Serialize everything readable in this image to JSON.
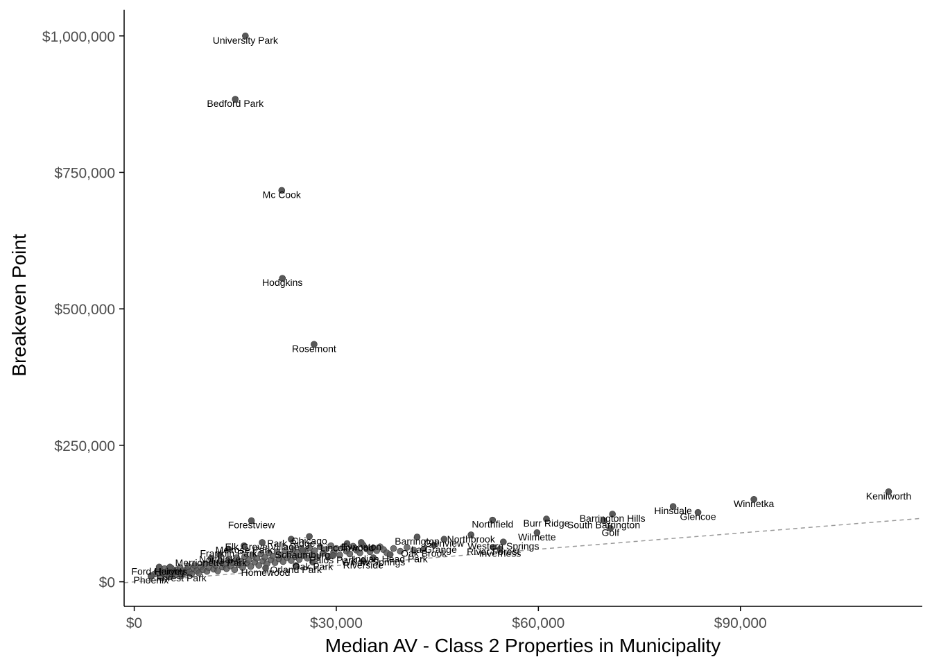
{
  "chart_data": {
    "type": "scatter",
    "title": "",
    "xlabel": "Median AV - Class 2 Properties in Municipality",
    "ylabel": "Breakeven Point",
    "xlim": [
      -1500,
      117000
    ],
    "ylim": [
      -45000,
      1048000
    ],
    "x_ticks": [
      0,
      30000,
      60000,
      90000
    ],
    "x_tick_labels": [
      "$0",
      "$30,000",
      "$60,000",
      "$90,000"
    ],
    "y_ticks": [
      0,
      250000,
      500000,
      750000,
      1000000
    ],
    "y_tick_labels": [
      "$0",
      "$250,000",
      "$500,000",
      "$750,000",
      "$1,000,000"
    ],
    "grid": false,
    "point_color": "#595959",
    "reference_line": {
      "style": "dashed",
      "color": "#999999",
      "x": [
        -1500,
        117000
      ],
      "y": [
        -1700,
        116300
      ]
    },
    "points": [
      {
        "x": 16500,
        "y": 1000000,
        "label": "University Park"
      },
      {
        "x": 15000,
        "y": 884000,
        "label": "Bedford Park"
      },
      {
        "x": 21900,
        "y": 717000,
        "label": "Mc Cook"
      },
      {
        "x": 22000,
        "y": 556000,
        "label": "Hodgkins"
      },
      {
        "x": 26700,
        "y": 435000,
        "label": "Rosemont"
      },
      {
        "x": 112000,
        "y": 165000,
        "label": "Kenilworth"
      },
      {
        "x": 92000,
        "y": 151000,
        "label": "Winnetka"
      },
      {
        "x": 80000,
        "y": 138000,
        "label": "Hinsdale"
      },
      {
        "x": 83700,
        "y": 127000,
        "label": "Glencoe"
      },
      {
        "x": 71000,
        "y": 124000,
        "label": "Barrington Hills"
      },
      {
        "x": 69700,
        "y": 112000,
        "label": "South Barrington"
      },
      {
        "x": 70700,
        "y": 98000,
        "label": "Golf"
      },
      {
        "x": 61200,
        "y": 115000,
        "label": "Burr Ridge"
      },
      {
        "x": 53200,
        "y": 113000,
        "label": "Northfield"
      },
      {
        "x": 59800,
        "y": 90000,
        "label": "Wilmette"
      },
      {
        "x": 50000,
        "y": 86000,
        "label": "Northbrook"
      },
      {
        "x": 46000,
        "y": 78000,
        "label": "Glenview"
      },
      {
        "x": 54800,
        "y": 73000,
        "label": "Western Springs"
      },
      {
        "x": 42000,
        "y": 82000,
        "label": "Barrington"
      },
      {
        "x": 44500,
        "y": 67000,
        "label": "La Grange"
      },
      {
        "x": 43000,
        "y": 60000,
        "label": "Oak Brook"
      },
      {
        "x": 53300,
        "y": 63000,
        "label": "River Forest"
      },
      {
        "x": 54300,
        "y": 60000,
        "label": "Inverness"
      },
      {
        "x": 17400,
        "y": 112000,
        "label": "Forestview"
      },
      {
        "x": 26000,
        "y": 83000,
        "label": "Chicago"
      },
      {
        "x": 23300,
        "y": 78000,
        "label": "Park Ridge"
      },
      {
        "x": 19000,
        "y": 72000,
        "label": "Elk Grove Village"
      },
      {
        "x": 33700,
        "y": 72000,
        "label": "Evanston"
      },
      {
        "x": 31600,
        "y": 70000,
        "label": "Lincolnwood"
      },
      {
        "x": 16300,
        "y": 66000,
        "label": "Melrose Park"
      },
      {
        "x": 14000,
        "y": 60000,
        "label": "Franklin Park"
      },
      {
        "x": 25000,
        "y": 57000,
        "label": "Schaumburg"
      },
      {
        "x": 29500,
        "y": 48000,
        "label": "Palos Park"
      },
      {
        "x": 38000,
        "y": 50000,
        "label": "Indian Head Park"
      },
      {
        "x": 35500,
        "y": 44000,
        "label": "Willow Springs"
      },
      {
        "x": 34000,
        "y": 38000,
        "label": "Riverside"
      },
      {
        "x": 26500,
        "y": 36000,
        "label": "Oak Park"
      },
      {
        "x": 11400,
        "y": 43000,
        "label": "Merrionette Park"
      },
      {
        "x": 12700,
        "y": 49000,
        "label": "Northlake"
      },
      {
        "x": 3700,
        "y": 27000,
        "label": "Ford Heights"
      },
      {
        "x": 5300,
        "y": 27000,
        "label": "Harvey"
      },
      {
        "x": 2500,
        "y": 11000,
        "label": "Phoenix"
      },
      {
        "x": 7000,
        "y": 15000,
        "label": "Forest Park"
      },
      {
        "x": 19500,
        "y": 25000,
        "label": "Homewood"
      },
      {
        "x": 24000,
        "y": 30000,
        "label": "Orland Park"
      }
    ],
    "cluster": [
      [
        2500,
        10000
      ],
      [
        3000,
        14000
      ],
      [
        3400,
        19000
      ],
      [
        3800,
        22000
      ],
      [
        4000,
        8000
      ],
      [
        4300,
        17000
      ],
      [
        4500,
        24000
      ],
      [
        4800,
        13000
      ],
      [
        5000,
        20000
      ],
      [
        5200,
        9000
      ],
      [
        5500,
        25000
      ],
      [
        5800,
        16000
      ],
      [
        6000,
        12000
      ],
      [
        6300,
        22000
      ],
      [
        6500,
        18000
      ],
      [
        6800,
        26000
      ],
      [
        7000,
        11000
      ],
      [
        7200,
        20000
      ],
      [
        7500,
        15000
      ],
      [
        7800,
        23000
      ],
      [
        8000,
        28000
      ],
      [
        8200,
        18000
      ],
      [
        8500,
        14000
      ],
      [
        8800,
        25000
      ],
      [
        9000,
        30000
      ],
      [
        9300,
        20000
      ],
      [
        9600,
        16000
      ],
      [
        9900,
        27000
      ],
      [
        10200,
        22000
      ],
      [
        10500,
        33000
      ],
      [
        10800,
        19000
      ],
      [
        11100,
        26000
      ],
      [
        11500,
        36000
      ],
      [
        11800,
        23000
      ],
      [
        12100,
        30000
      ],
      [
        12400,
        20000
      ],
      [
        12800,
        38000
      ],
      [
        13100,
        27000
      ],
      [
        13400,
        32000
      ],
      [
        13700,
        24000
      ],
      [
        14000,
        41000
      ],
      [
        14300,
        29000
      ],
      [
        14600,
        35000
      ],
      [
        14900,
        22000
      ],
      [
        15200,
        44000
      ],
      [
        15500,
        31000
      ],
      [
        15800,
        38000
      ],
      [
        16100,
        26000
      ],
      [
        16400,
        46000
      ],
      [
        16700,
        34000
      ],
      [
        17000,
        40000
      ],
      [
        17300,
        28000
      ],
      [
        17600,
        48000
      ],
      [
        17900,
        36000
      ],
      [
        18200,
        43000
      ],
      [
        18500,
        30000
      ],
      [
        18800,
        51000
      ],
      [
        19100,
        38000
      ],
      [
        19400,
        45000
      ],
      [
        19700,
        33000
      ],
      [
        20000,
        53000
      ],
      [
        20300,
        40000
      ],
      [
        20600,
        47000
      ],
      [
        20900,
        35000
      ],
      [
        21200,
        55000
      ],
      [
        21500,
        42000
      ],
      [
        21800,
        49000
      ],
      [
        22100,
        37000
      ],
      [
        22400,
        57000
      ],
      [
        22700,
        44000
      ],
      [
        23000,
        51000
      ],
      [
        23300,
        39000
      ],
      [
        23600,
        59000
      ],
      [
        23900,
        46000
      ],
      [
        24200,
        53000
      ],
      [
        24500,
        41000
      ],
      [
        24800,
        61000
      ],
      [
        25100,
        48000
      ],
      [
        25400,
        55000
      ],
      [
        25700,
        43000
      ],
      [
        26000,
        62000
      ],
      [
        26400,
        50000
      ],
      [
        26800,
        57000
      ],
      [
        27200,
        45000
      ],
      [
        27600,
        64000
      ],
      [
        28000,
        52000
      ],
      [
        28400,
        59000
      ],
      [
        28800,
        47000
      ],
      [
        29200,
        66000
      ],
      [
        29600,
        54000
      ],
      [
        30000,
        61000
      ],
      [
        30500,
        49000
      ],
      [
        31000,
        63000
      ],
      [
        31500,
        56000
      ],
      [
        32000,
        51000
      ],
      [
        32500,
        65000
      ],
      [
        33000,
        58000
      ],
      [
        33500,
        53000
      ],
      [
        34000,
        67000
      ],
      [
        34500,
        60000
      ],
      [
        35000,
        55000
      ],
      [
        35500,
        62000
      ],
      [
        36000,
        57000
      ],
      [
        36500,
        64000
      ],
      [
        37000,
        59000
      ],
      [
        37500,
        53000
      ],
      [
        38500,
        61000
      ],
      [
        39500,
        56000
      ],
      [
        40500,
        63000
      ],
      [
        41500,
        58000
      ]
    ]
  }
}
